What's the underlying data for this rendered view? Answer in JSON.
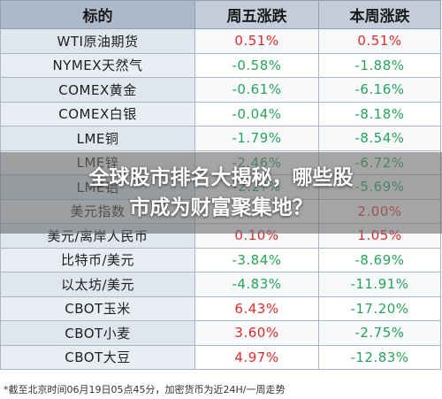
{
  "header": {
    "col1": "标的",
    "col2": "周五涨跌",
    "col3": "本周涨跌"
  },
  "rows": [
    {
      "name": "WTI原油期货",
      "day": "0.51%",
      "day_dir": "up",
      "week": "0.51%",
      "week_dir": "up"
    },
    {
      "name": "NYMEX天然气",
      "day": "-0.58%",
      "day_dir": "down",
      "week": "-1.88%",
      "week_dir": "down"
    },
    {
      "name": "COMEX黄金",
      "day": "-0.61%",
      "day_dir": "down",
      "week": "-6.16%",
      "week_dir": "down"
    },
    {
      "name": "COMEX白银",
      "day": "-0.04%",
      "day_dir": "down",
      "week": "-8.18%",
      "week_dir": "down"
    },
    {
      "name": "LME铜",
      "day": "-1.79%",
      "day_dir": "down",
      "week": "-8.54%",
      "week_dir": "down"
    },
    {
      "name": "LME锌",
      "day": "-2.46%",
      "day_dir": "down",
      "week": "-6.72%",
      "week_dir": "down"
    },
    {
      "name": "LME铝",
      "day": "-2.2?%",
      "day_dir": "down",
      "week": "-5.69%",
      "week_dir": "down"
    },
    {
      "name": "美元指数",
      "day": "",
      "day_dir": "up",
      "week": "2.00%",
      "week_dir": "up"
    },
    {
      "name": "美元/离岸人民币",
      "day": "0.10%",
      "day_dir": "up",
      "week": "1.05%",
      "week_dir": "up"
    },
    {
      "name": "比特币/美元",
      "day": "-3.84%",
      "day_dir": "down",
      "week": "-8.69%",
      "week_dir": "down"
    },
    {
      "name": "以太坊/美元",
      "day": "-4.83%",
      "day_dir": "down",
      "week": "-11.91%",
      "week_dir": "down"
    },
    {
      "name": "CBOT玉米",
      "day": "6.43%",
      "day_dir": "up",
      "week": "-17.20%",
      "week_dir": "down"
    },
    {
      "name": "CBOT小麦",
      "day": "3.60%",
      "day_dir": "up",
      "week": "-2.75%",
      "week_dir": "down"
    },
    {
      "name": "CBOT大豆",
      "day": "4.97%",
      "day_dir": "up",
      "week": "-12.83%",
      "week_dir": "down"
    }
  ],
  "footnote": "*截至北京时间06月19日05点45分，加密货币为近24H/一周走势",
  "headline": {
    "line1": "全球股市排名大揭秘，哪些股",
    "line2": "市成为财富聚集地？"
  },
  "colors": {
    "up": "#e02b2b",
    "down": "#27a35a",
    "header_bg": "#c3ccd8",
    "overlay": "#6e6e6e"
  }
}
